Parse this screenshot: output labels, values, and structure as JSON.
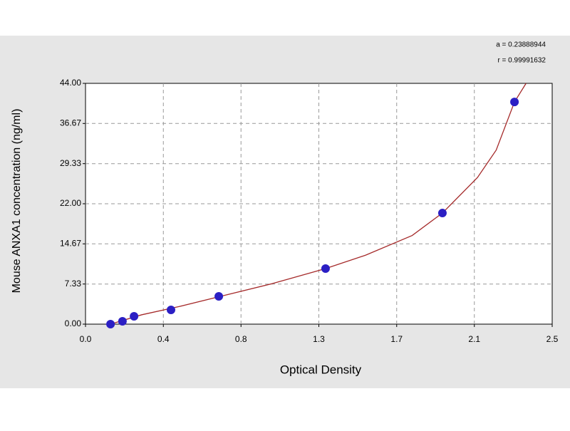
{
  "chart_data": {
    "type": "scatter",
    "x_label": "Optical Density",
    "y_label": "Mouse ANXA1 concentration (ng/ml)",
    "annotations": [
      "a = 0.23888944",
      "r = 0.99991632"
    ],
    "xlim": [
      0,
      2.5
    ],
    "xticks": [
      {
        "value": 0,
        "label": "0.0"
      },
      {
        "value": 0.417,
        "label": "0.4"
      },
      {
        "value": 0.833,
        "label": "0.8"
      },
      {
        "value": 1.25,
        "label": "1.3"
      },
      {
        "value": 1.667,
        "label": "1.7"
      },
      {
        "value": 2.083,
        "label": "2.1"
      },
      2.5
    ],
    "ylim": [
      0,
      44
    ],
    "yticks": [
      {
        "value": 0,
        "label": "0.00"
      },
      7.33,
      14.67,
      {
        "value": 22,
        "label": "22.00"
      },
      29.33,
      36.67,
      {
        "value": 44,
        "label": "44.00"
      }
    ],
    "grid": true,
    "points": {
      "color": "#2b1fc4",
      "x": [
        0.134,
        0.198,
        0.26,
        0.458,
        0.714,
        1.286,
        1.912,
        2.298
      ],
      "values": [
        0,
        0.52,
        1.43,
        2.6,
        5.08,
        10.15,
        20.3,
        40.6
      ]
    },
    "fit": {
      "color": "#a52a2a",
      "x": [
        0.134,
        0.3,
        0.5,
        0.75,
        1.0,
        1.286,
        1.5,
        1.75,
        1.912,
        2.1,
        2.2,
        2.298,
        2.36
      ],
      "values": [
        0,
        1.7,
        3.2,
        5.3,
        7.4,
        10.15,
        12.6,
        16.2,
        20.3,
        26.8,
        31.8,
        40.6,
        44
      ]
    }
  }
}
